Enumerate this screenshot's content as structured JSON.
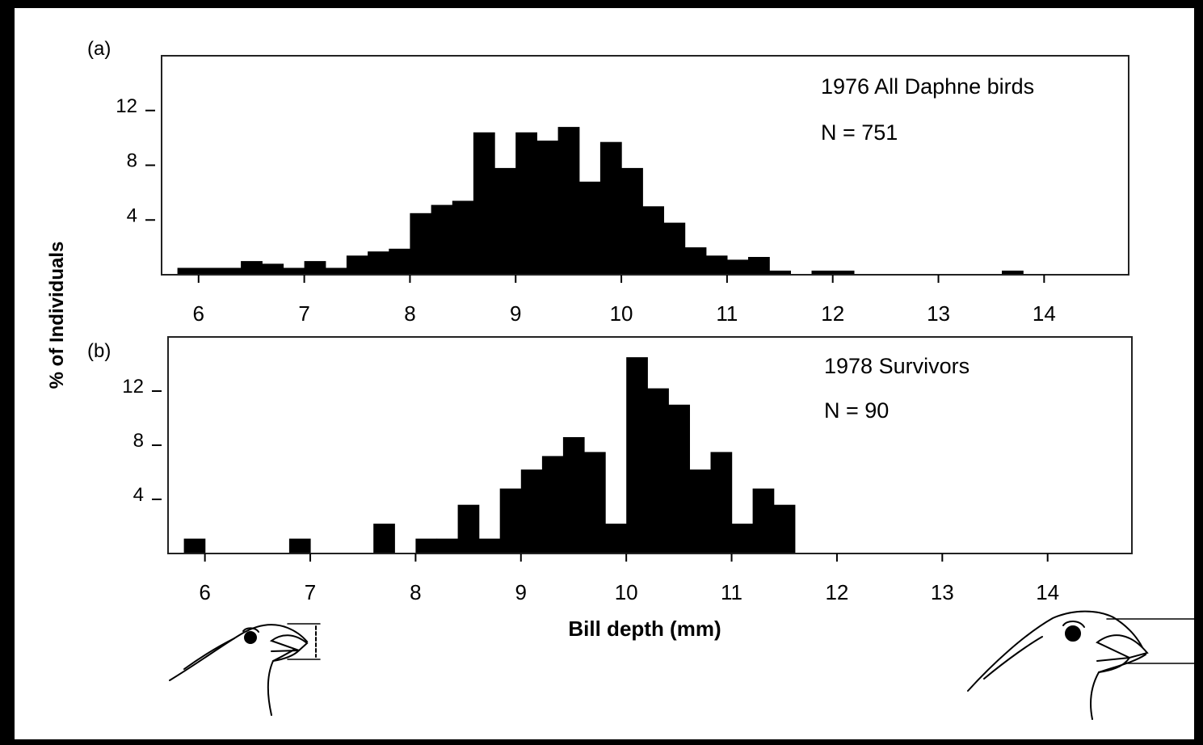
{
  "figure": {
    "ylabel": "% of Individuals",
    "xlabel": "Bill depth (mm)",
    "illustrations": [
      "small-bill-finch-head-icon",
      "large-bill-finch-head-icon"
    ]
  },
  "chart_data": [
    {
      "type": "bar",
      "panel_label": "(a)",
      "legend_title": "1976 All Daphne birds",
      "legend_n": "N = 751",
      "bin_width": 0.2,
      "x_ticks": [
        6,
        7,
        8,
        9,
        10,
        11,
        12,
        13,
        14
      ],
      "y_ticks": [
        4,
        8,
        12
      ],
      "ylim": [
        0,
        16
      ],
      "xlim": [
        5.65,
        14.8
      ],
      "bins": [
        {
          "x": 5.8,
          "value": 0.5
        },
        {
          "x": 6.0,
          "value": 0.5
        },
        {
          "x": 6.2,
          "value": 0.5
        },
        {
          "x": 6.4,
          "value": 1.0
        },
        {
          "x": 6.6,
          "value": 0.8
        },
        {
          "x": 6.8,
          "value": 0.5
        },
        {
          "x": 7.0,
          "value": 1.0
        },
        {
          "x": 7.2,
          "value": 0.5
        },
        {
          "x": 7.4,
          "value": 1.4
        },
        {
          "x": 7.6,
          "value": 1.7
        },
        {
          "x": 7.8,
          "value": 1.9
        },
        {
          "x": 8.0,
          "value": 4.5
        },
        {
          "x": 8.2,
          "value": 5.1
        },
        {
          "x": 8.4,
          "value": 5.4
        },
        {
          "x": 8.6,
          "value": 10.4
        },
        {
          "x": 8.8,
          "value": 7.8
        },
        {
          "x": 9.0,
          "value": 10.4
        },
        {
          "x": 9.2,
          "value": 9.8
        },
        {
          "x": 9.4,
          "value": 10.8
        },
        {
          "x": 9.6,
          "value": 6.8
        },
        {
          "x": 9.8,
          "value": 9.7
        },
        {
          "x": 10.0,
          "value": 7.8
        },
        {
          "x": 10.2,
          "value": 5.0
        },
        {
          "x": 10.4,
          "value": 3.8
        },
        {
          "x": 10.6,
          "value": 2.0
        },
        {
          "x": 10.8,
          "value": 1.4
        },
        {
          "x": 11.0,
          "value": 1.1
        },
        {
          "x": 11.2,
          "value": 1.3
        },
        {
          "x": 11.4,
          "value": 0.3
        },
        {
          "x": 11.8,
          "value": 0.3
        },
        {
          "x": 12.0,
          "value": 0.3
        },
        {
          "x": 13.6,
          "value": 0.3
        }
      ]
    },
    {
      "type": "bar",
      "panel_label": "(b)",
      "legend_title": "1978 Survivors",
      "legend_n": "N = 90",
      "bin_width": 0.2,
      "x_ticks": [
        6,
        7,
        8,
        9,
        10,
        11,
        12,
        13,
        14
      ],
      "y_ticks": [
        4,
        8,
        12
      ],
      "ylim": [
        0,
        16
      ],
      "xlim": [
        5.65,
        14.8
      ],
      "bins": [
        {
          "x": 5.8,
          "value": 1.1
        },
        {
          "x": 6.8,
          "value": 1.1
        },
        {
          "x": 7.6,
          "value": 2.2
        },
        {
          "x": 8.0,
          "value": 1.1
        },
        {
          "x": 8.2,
          "value": 1.1
        },
        {
          "x": 8.4,
          "value": 3.6
        },
        {
          "x": 8.6,
          "value": 1.1
        },
        {
          "x": 8.8,
          "value": 4.8
        },
        {
          "x": 9.0,
          "value": 6.2
        },
        {
          "x": 9.2,
          "value": 7.2
        },
        {
          "x": 9.4,
          "value": 8.6
        },
        {
          "x": 9.6,
          "value": 7.5
        },
        {
          "x": 9.8,
          "value": 2.2
        },
        {
          "x": 10.0,
          "value": 14.5
        },
        {
          "x": 10.2,
          "value": 12.2
        },
        {
          "x": 10.4,
          "value": 11.0
        },
        {
          "x": 10.6,
          "value": 6.2
        },
        {
          "x": 10.8,
          "value": 7.5
        },
        {
          "x": 11.0,
          "value": 2.2
        },
        {
          "x": 11.2,
          "value": 4.8
        },
        {
          "x": 11.4,
          "value": 3.6
        }
      ]
    }
  ]
}
